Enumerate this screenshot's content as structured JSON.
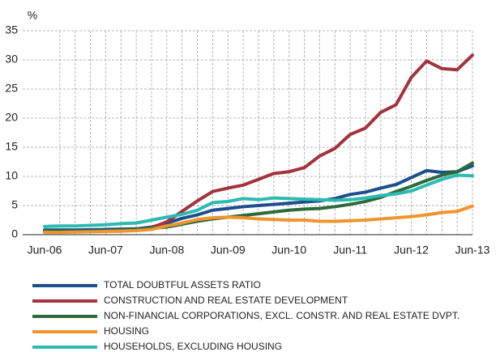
{
  "chart_data": {
    "type": "line",
    "y_unit": "%",
    "categories": [
      "Jun-06",
      null,
      null,
      null,
      "Jun-07",
      null,
      null,
      null,
      "Jun-08",
      null,
      null,
      null,
      "Jun-09",
      null,
      null,
      null,
      "Jun-10",
      null,
      null,
      null,
      "Jun-11",
      null,
      null,
      null,
      "Jun-12",
      null,
      null,
      null,
      "Jun-13"
    ],
    "ylim": [
      0,
      35
    ],
    "yticks": [
      0,
      5,
      10,
      15,
      20,
      25,
      30,
      35
    ],
    "grid": true,
    "legend": "bottom",
    "series": [
      {
        "name": "TOTAL DOUBTFUL ASSETS RATIO",
        "color": "#1d4f8c",
        "values": [
          0.8,
          0.8,
          0.8,
          0.85,
          0.9,
          0.95,
          1.0,
          1.3,
          2.0,
          2.8,
          3.4,
          4.2,
          4.5,
          4.8,
          5.0,
          5.2,
          5.4,
          5.6,
          5.8,
          6.2,
          6.9,
          7.3,
          8.0,
          8.6,
          9.8,
          11.0,
          10.7,
          10.8,
          11.8
        ]
      },
      {
        "name": "CONSTRUCTION AND REAL ESTATE DEVELOPMENT",
        "color": "#a3333d",
        "values": [
          0.5,
          0.5,
          0.5,
          0.55,
          0.6,
          0.6,
          0.8,
          1.2,
          2.2,
          4.0,
          5.8,
          7.4,
          8.0,
          8.5,
          9.5,
          10.5,
          10.8,
          11.5,
          13.5,
          14.8,
          17.2,
          18.3,
          21.0,
          22.3,
          27.0,
          29.8,
          28.5,
          28.3,
          30.8
        ]
      },
      {
        "name": "NON-FINANCIAL CORPORATIONS, EXCL. CONSTR. AND REAL ESTATE DVPT.",
        "color": "#2d6a3b",
        "values": [
          0.6,
          0.6,
          0.6,
          0.6,
          0.7,
          0.8,
          0.9,
          1.1,
          1.3,
          1.8,
          2.3,
          2.7,
          3.0,
          3.3,
          3.6,
          3.9,
          4.2,
          4.4,
          4.5,
          4.8,
          5.2,
          5.7,
          6.4,
          7.4,
          8.3,
          9.3,
          10.2,
          10.8,
          12.3
        ]
      },
      {
        "name": "HOUSING",
        "color": "#f0952d",
        "values": [
          0.4,
          0.4,
          0.45,
          0.5,
          0.55,
          0.6,
          0.7,
          0.9,
          1.5,
          2.0,
          2.6,
          2.9,
          3.0,
          2.9,
          2.7,
          2.6,
          2.5,
          2.5,
          2.3,
          2.3,
          2.4,
          2.5,
          2.7,
          2.9,
          3.1,
          3.4,
          3.8,
          4.0,
          4.9
        ]
      },
      {
        "name": "HOUSEHOLDS, EXCLUDING HOUSING",
        "color": "#2bbbb0",
        "values": [
          1.4,
          1.5,
          1.5,
          1.6,
          1.7,
          1.9,
          2.0,
          2.5,
          3.0,
          3.5,
          4.2,
          5.5,
          5.7,
          6.2,
          6.0,
          6.3,
          6.2,
          6.1,
          6.0,
          5.9,
          6.0,
          6.3,
          6.7,
          7.0,
          7.5,
          8.5,
          9.5,
          10.2,
          10.1
        ]
      }
    ]
  }
}
